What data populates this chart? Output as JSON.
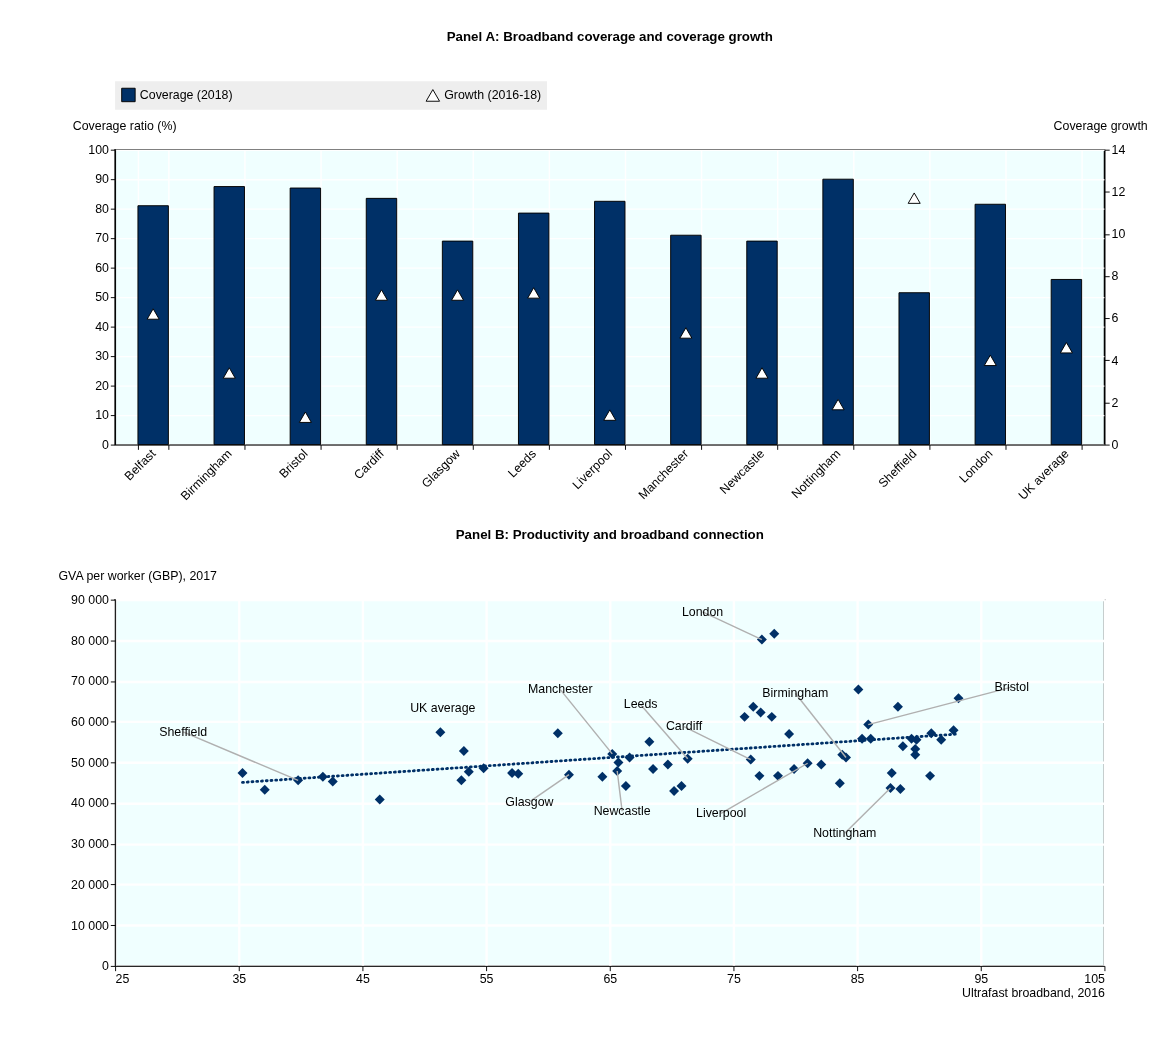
{
  "chart_data": [
    {
      "type": "bar",
      "title": "Panel A: Broadband coverage and coverage growth",
      "categories": [
        "Belfast",
        "Birmingham",
        "Bristol",
        "Cardiff",
        "Glasgow",
        "Leeds",
        "Liverpool",
        "Manchester",
        "Newcastle",
        "Nottingham",
        "Sheffield",
        "London",
        "UK average"
      ],
      "series": [
        {
          "name": "Coverage (2018)",
          "type": "bar",
          "color": "#003067",
          "values": [
            81,
            87.5,
            87,
            83.5,
            69,
            78.5,
            82.5,
            71,
            69,
            90,
            51.5,
            81.5,
            56
          ]
        },
        {
          "name": "Growth (2016-18)",
          "type": "scatter",
          "marker": "triangle",
          "axis": "y2",
          "color": "#ffffff",
          "values": [
            6.2,
            3.4,
            1.3,
            7.1,
            7.1,
            7.2,
            1.4,
            5.3,
            3.4,
            1.9,
            11.7,
            4.0,
            4.6
          ]
        }
      ],
      "ylabel": "Coverage ratio (%)",
      "y2label": "Coverage growth",
      "ylim": [
        0,
        100
      ],
      "yticks": [
        0,
        10,
        20,
        30,
        40,
        50,
        60,
        70,
        80,
        90,
        100
      ],
      "y2lim": [
        0,
        14
      ],
      "y2ticks": [
        0,
        2,
        4,
        6,
        8,
        10,
        12,
        14
      ],
      "legend": "top",
      "grid": true
    },
    {
      "type": "scatter",
      "title": "Panel B: Productivity and broadband connection",
      "xlabel": "Ultrafast broadband, 2016",
      "ylabel": "GVA per worker (GBP), 2017",
      "series": [
        {
          "type": "scatter",
          "marker": "diamond",
          "color": "#003067",
          "x": [
            35.3,
            37.1,
            39.8,
            41.8,
            42.6,
            46.4,
            51.3,
            53.2,
            53.0,
            53.6,
            54.8,
            57.1,
            57.6,
            60.8,
            61.7,
            64.4,
            65.2,
            65.6,
            65.7,
            66.3,
            66.6,
            68.2,
            68.5,
            69.7,
            70.2,
            70.8,
            71.3,
            75.9,
            76.6,
            77.2,
            78.1,
            76.4,
            77.1,
            78.6,
            79.5,
            79.9,
            81.0,
            82.1,
            83.6,
            83.8,
            84.1,
            85.1,
            85.4,
            86.1,
            85.9,
            88.3,
            87.8,
            87.7,
            88.5,
            88.7,
            89.4,
            89.7,
            89.8,
            89.7,
            91.0,
            91.8,
            90.9,
            92.8,
            93.2,
            77.3,
            78.3
          ],
          "values": [
            47400,
            43300,
            45600,
            46500,
            45300,
            40900,
            57400,
            52800,
            45600,
            47700,
            48600,
            47400,
            47200,
            57200,
            47000,
            46500,
            52100,
            47900,
            50000,
            44200,
            51200,
            55100,
            48400,
            49500,
            43000,
            44200,
            50900,
            61200,
            63700,
            62300,
            61200,
            50700,
            46700,
            46700,
            57000,
            48400,
            49800,
            49500,
            44900,
            51900,
            51200,
            67900,
            55800,
            55800,
            59300,
            63700,
            47400,
            43700,
            43500,
            54000,
            55800,
            53300,
            55600,
            51900,
            57200,
            55600,
            46700,
            57900,
            65800,
            80200,
            81600
          ]
        },
        {
          "type": "line",
          "line_style": "dotted",
          "color": "#003067",
          "x": [
            35.3,
            93.2
          ],
          "values": [
            45100,
            57000
          ]
        }
      ],
      "annotations": [
        {
          "text": "London",
          "x": 77.3,
          "y": 80200
        },
        {
          "text": "Bristol",
          "x": 85.9,
          "y": 59300
        },
        {
          "text": "Birmingham",
          "x": 84.1,
          "y": 51200
        },
        {
          "text": "Leeds",
          "x": 71.3,
          "y": 50900
        },
        {
          "text": "Cardiff",
          "x": 76.4,
          "y": 50700
        },
        {
          "text": "Manchester",
          "x": 65.2,
          "y": 52100
        },
        {
          "text": "UK average",
          "x": 51.3,
          "y": 57400
        },
        {
          "text": "Sheffield",
          "x": 39.8,
          "y": 45600
        },
        {
          "text": "Glasgow",
          "x": 61.7,
          "y": 47000
        },
        {
          "text": "Newcastle",
          "x": 65.6,
          "y": 47900
        },
        {
          "text": "Liverpool",
          "x": 81.0,
          "y": 49800
        },
        {
          "text": "Nottingham",
          "x": 87.7,
          "y": 43700
        }
      ],
      "xlim": [
        25,
        105
      ],
      "xticks": [
        25,
        35,
        45,
        55,
        65,
        75,
        85,
        95,
        105
      ],
      "ylim": [
        0,
        90000
      ],
      "yticks": [
        0,
        {
          "value": 10000,
          "label": "10 000"
        },
        {
          "value": 20000,
          "label": "20 000"
        },
        {
          "value": 30000,
          "label": "30 000"
        },
        {
          "value": 40000,
          "label": "40 000"
        },
        {
          "value": 50000,
          "label": "50 000"
        },
        {
          "value": 60000,
          "label": "60 000"
        },
        {
          "value": 70000,
          "label": "70 000"
        },
        {
          "value": 80000,
          "label": "80 000"
        },
        {
          "value": 90000,
          "label": "90 000"
        }
      ],
      "grid": true
    }
  ]
}
